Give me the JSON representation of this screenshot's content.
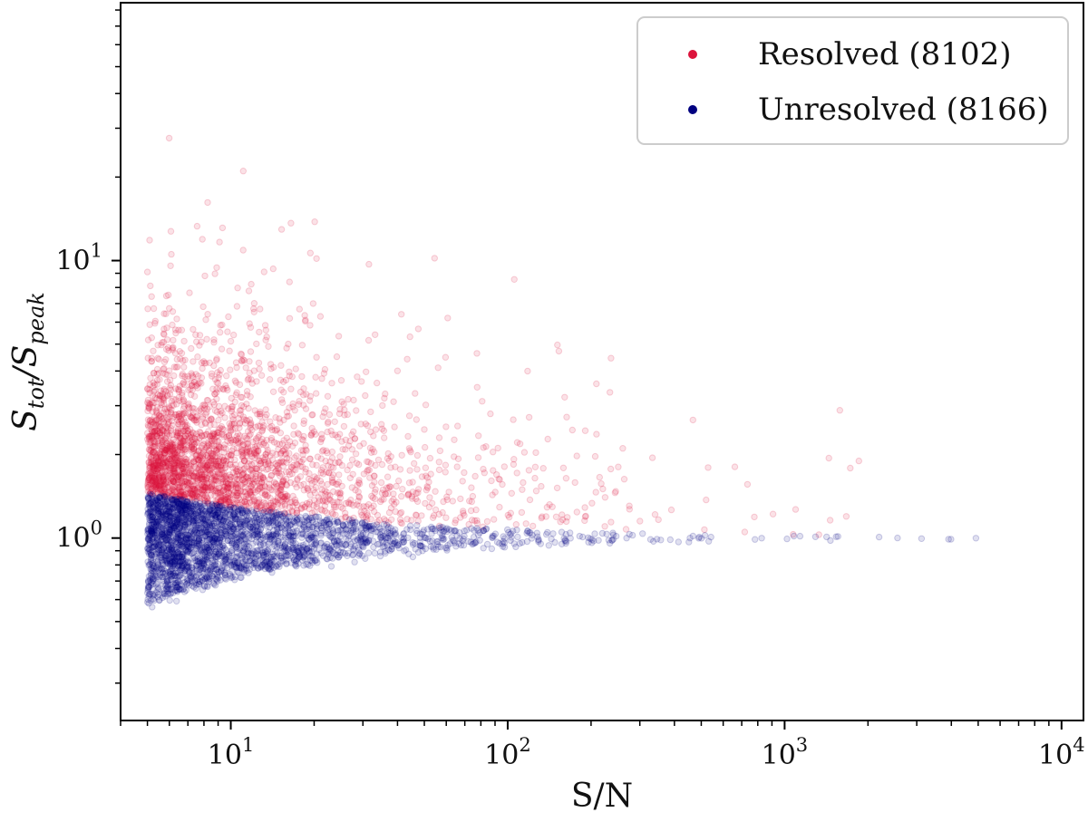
{
  "chart_data": {
    "type": "scatter",
    "xlabel": "S/N",
    "ylabel": "S_tot/S_peak",
    "xscale": "log",
    "yscale": "log",
    "xlim": [
      4.0,
      12000
    ],
    "ylim": [
      0.22,
      85
    ],
    "x_ticks": [
      {
        "value": 10,
        "base": "10",
        "exp": "1"
      },
      {
        "value": 100,
        "base": "10",
        "exp": "2"
      },
      {
        "value": 1000,
        "base": "10",
        "exp": "3"
      },
      {
        "value": 10000,
        "base": "10",
        "exp": "4"
      }
    ],
    "y_ticks": [
      {
        "value": 1,
        "base": "10",
        "exp": "0"
      },
      {
        "value": 10,
        "base": "10",
        "exp": "1"
      }
    ],
    "grid": false,
    "legend_position": "top-right",
    "series": [
      {
        "name": "Resolved (8102)",
        "color": "#dc143c",
        "count": 8102,
        "marker_alpha": 0.12
      },
      {
        "name": "Unresolved (8166)",
        "color": "#000080",
        "count": 8166,
        "marker_alpha": 0.12
      }
    ]
  }
}
